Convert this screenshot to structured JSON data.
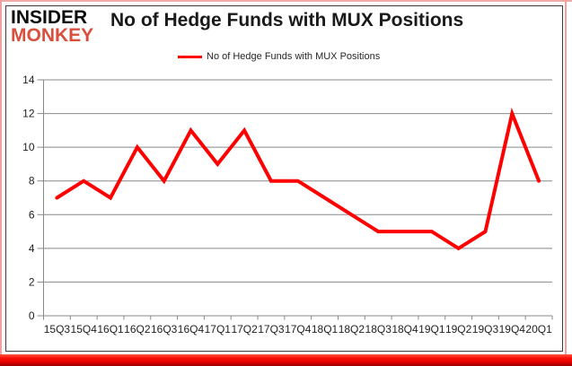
{
  "brand": {
    "line1": "INSIDER",
    "line2": "MONKEY"
  },
  "header": {
    "title": "No of Hedge Funds with MUX Positions"
  },
  "legend": {
    "label": "No of Hedge Funds with MUX Positions"
  },
  "colors": {
    "brand_red": "#d94f3d",
    "series_red": "#ff0000",
    "grid_gray": "#898989",
    "bottom_glow_red": "#e60000"
  },
  "chart_data": {
    "type": "line",
    "title": "No of Hedge Funds with MUX Positions",
    "series_name": "No of Hedge Funds with MUX Positions",
    "categories": [
      "15Q3",
      "15Q4",
      "16Q1",
      "16Q2",
      "16Q3",
      "16Q4",
      "17Q1",
      "17Q2",
      "17Q3",
      "17Q4",
      "18Q1",
      "18Q2",
      "18Q3",
      "18Q4",
      "19Q1",
      "19Q2",
      "19Q3",
      "19Q4",
      "20Q1"
    ],
    "values": [
      7,
      8,
      7,
      10,
      8,
      11,
      9,
      11,
      8,
      8,
      7,
      6,
      5,
      5,
      5,
      4,
      5,
      12,
      8
    ],
    "ylim": [
      0,
      14
    ],
    "yticks": [
      0,
      2,
      4,
      6,
      8,
      10,
      12,
      14
    ],
    "grid": true,
    "legend_position": "top"
  }
}
